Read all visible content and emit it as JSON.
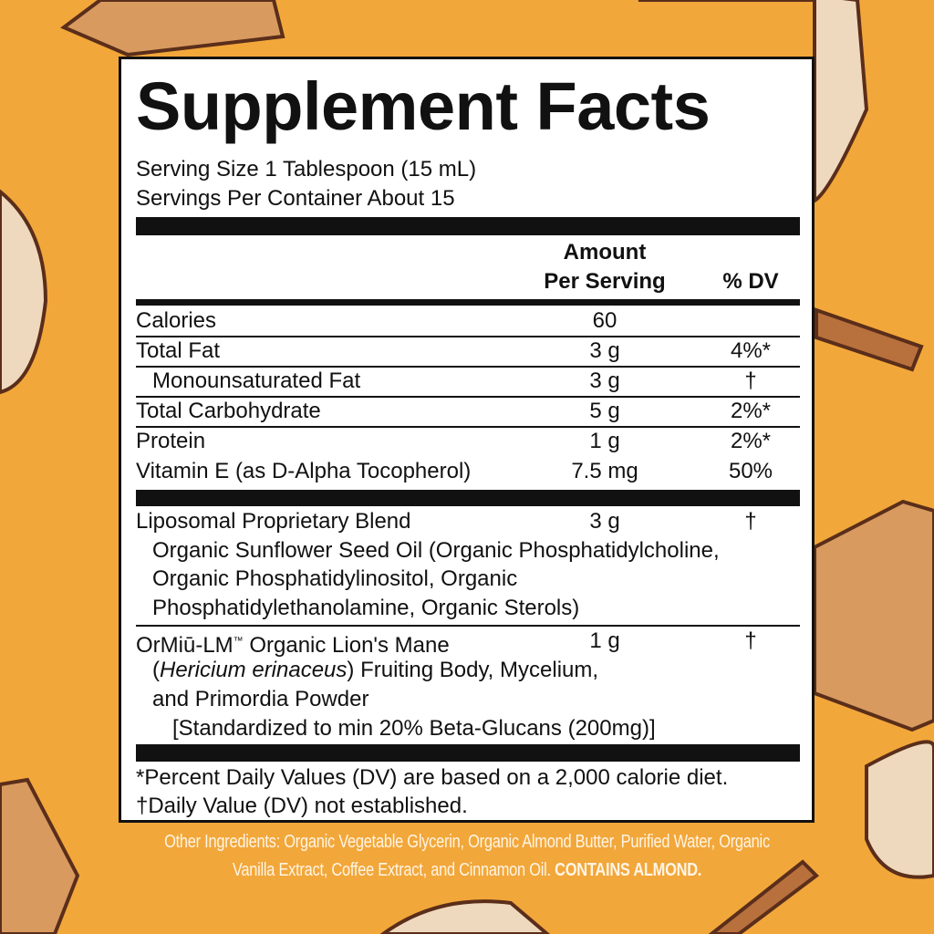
{
  "colors": {
    "background": "#F2A73A",
    "label_bg": "#FFFFFF",
    "ink": "#111111",
    "other_text": "#FFF5E6"
  },
  "title": "Supplement Facts",
  "serving_size": "Serving Size 1 Tablespoon (15 mL)",
  "servings_per_container": "Servings Per Container About 15",
  "header": {
    "amount_line1": "Amount",
    "amount_line2": "Per Serving",
    "dv": "% DV"
  },
  "nutrients": [
    {
      "name": "Calories",
      "amount": "60",
      "dv": ""
    },
    {
      "name": "Total Fat",
      "amount": "3 g",
      "dv": "4%*"
    },
    {
      "name": "Monounsaturated Fat",
      "amount": "3 g",
      "dv": "†"
    },
    {
      "name": "Total Carbohydrate",
      "amount": "5 g",
      "dv": "2%*"
    },
    {
      "name": "Protein",
      "amount": "1 g",
      "dv": "2%*"
    },
    {
      "name": "Vitamin E (as D-Alpha Tocopherol)",
      "amount": "7.5 mg",
      "dv": "50%"
    }
  ],
  "blend": {
    "name": "Liposomal Proprietary Blend",
    "amount": "3 g",
    "dv": "†",
    "lines": [
      "Organic Sunflower Seed Oil (Organic Phosphatidylcholine,",
      "Organic Phosphatidylinositol, Organic",
      "Phosphatidylethanolamine, Organic Sterols)"
    ]
  },
  "lions_mane": {
    "name": "OrMiū-LM",
    "tm": "™",
    "name_rest": " Organic Lion's Mane",
    "amount": "1 g",
    "dv": "†",
    "paren_open": "(",
    "latin": "Hericium erinaceus",
    "line2_rest": ") Fruiting Body, Mycelium,",
    "line3": "and Primordia Powder",
    "line4": "[Standardized to min 20% Beta-Glucans (200mg)]"
  },
  "footnotes": [
    "*Percent Daily Values (DV) are based on a 2,000 calorie diet.",
    "†Daily Value (DV) not established."
  ],
  "other_ingredients": {
    "text": "Other Ingredients: Organic Vegetable Glycerin, Organic Almond Butter, Purified Water, Organic Vanilla Extract, Coffee Extract, and Cinnamon Oil.",
    "allergen": "CONTAINS ALMOND."
  }
}
